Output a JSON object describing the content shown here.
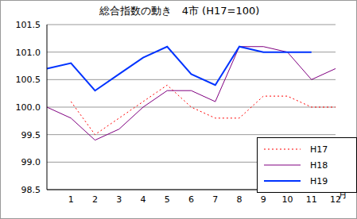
{
  "chart_data": {
    "type": "line",
    "title": "総合指数の動き　4市 (H17=100)",
    "x_label": "月",
    "categories": [
      null,
      "1",
      "2",
      "3",
      "4",
      "5",
      "6",
      "7",
      "8",
      "9",
      "10",
      "11",
      "12"
    ],
    "series": [
      {
        "name": "H17",
        "color": "#ff0000",
        "line_style": "dotted",
        "values": [
          null,
          100.1,
          99.5,
          99.8,
          100.1,
          100.4,
          100.0,
          99.8,
          99.8,
          100.2,
          100.2,
          100.0,
          100.0
        ]
      },
      {
        "name": "H18",
        "color": "#800080",
        "line_style": "solid",
        "values": [
          100.0,
          99.8,
          99.4,
          99.6,
          100.0,
          100.3,
          100.3,
          100.1,
          101.1,
          101.1,
          101.0,
          100.5,
          100.7
        ]
      },
      {
        "name": "H19",
        "color": "#0033ff",
        "line_style": "solid",
        "values": [
          100.7,
          100.8,
          100.3,
          100.6,
          100.9,
          101.1,
          100.6,
          100.4,
          101.1,
          101.0,
          101.0,
          101.0,
          null
        ]
      }
    ],
    "ylim": [
      98.5,
      101.5
    ],
    "yticks": [
      98.5,
      {
        "value": 99,
        "label": "99.0"
      },
      99.5,
      {
        "value": 100,
        "label": "100.0"
      },
      100.5,
      {
        "value": 101,
        "label": "101.0"
      },
      101.5
    ],
    "grid": true,
    "legend": "lower right"
  }
}
